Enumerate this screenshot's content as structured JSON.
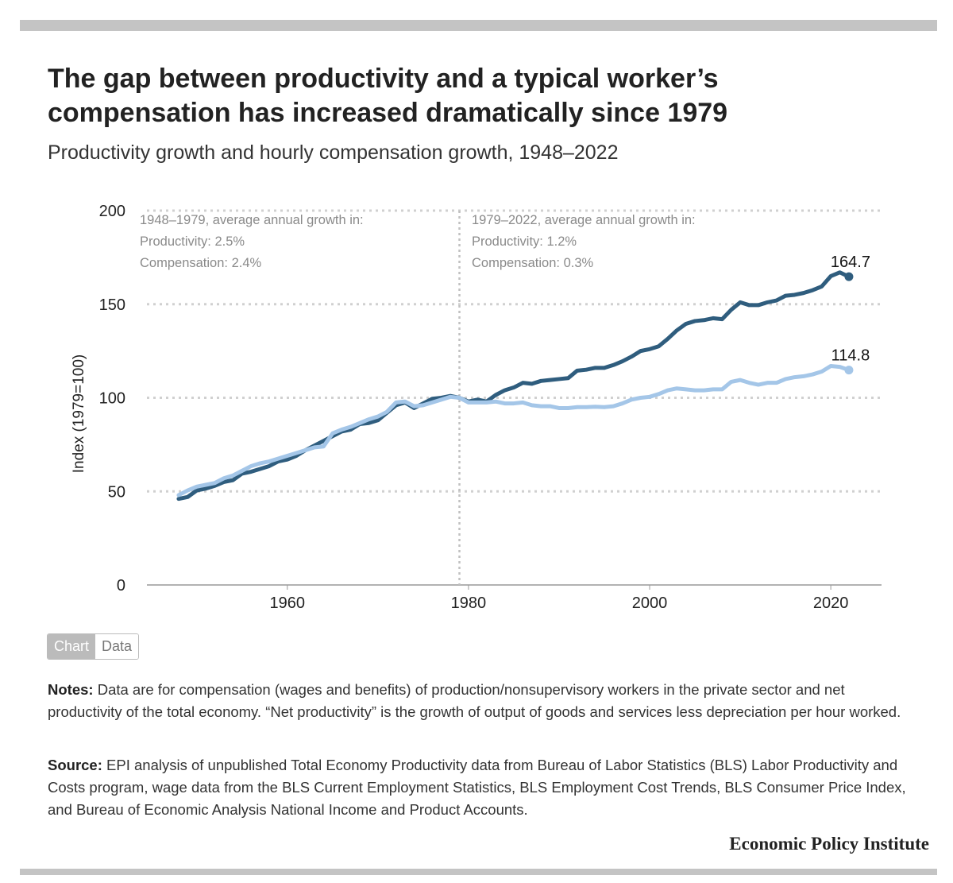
{
  "title": "The gap between productivity and a typical worker’s compensation has increased dramatically since 1979",
  "subtitle": "Productivity growth and hourly compensation growth, 1948–2022",
  "toggle": {
    "chart": "Chart",
    "data": "Data",
    "selected": "Chart"
  },
  "notes": {
    "label": "Notes:",
    "text": " Data are for compensation (wages and benefits) of production/nonsupervisory workers in the private sector and net productivity of the total economy. “Net productivity” is the growth of output of goods and services less depreciation per hour worked."
  },
  "source": {
    "label": "Source:",
    "text": " EPI analysis of unpublished Total Economy Productivity data from Bureau of Labor Statistics (BLS) Labor Productivity and Costs program, wage data from the BLS Current Employment Statistics, BLS Employment Cost Trends, BLS Consumer Price Index, and Bureau of Economic Analysis National Income and Product Accounts."
  },
  "logo": "Economic Policy Institute",
  "chart_data": {
    "type": "line",
    "title": "",
    "xlabel": "",
    "ylabel": "Index (1979=100)",
    "xlim": [
      1944.5,
      2025.6
    ],
    "ylim": [
      0,
      200
    ],
    "xticks": [
      1960,
      1980,
      2000,
      2020
    ],
    "yticks": [
      0,
      50,
      100,
      150,
      200
    ],
    "grid": "horizontal dotted",
    "divider_year": 1979,
    "annotations": [
      {
        "lines": [
          "1948–1979, average annual growth in:",
          "Productivity: 2.5%",
          "Compensation: 2.4%"
        ]
      },
      {
        "lines": [
          "1979–2022, average annual growth in:",
          "Productivity: 1.2%",
          "Compensation: 0.3%"
        ]
      }
    ],
    "x_start": 1948,
    "series": [
      {
        "key": "productivity",
        "color": "#2f5d7e",
        "end_label": "164.7",
        "values": [
          46,
          47,
          50.5,
          51.5,
          53,
          55,
          56,
          59.5,
          60.5,
          62,
          63.5,
          66,
          67,
          69,
          72,
          74.5,
          77,
          79.5,
          82,
          83,
          86,
          86.5,
          88,
          92,
          96,
          97.5,
          94.5,
          97,
          99.5,
          100,
          101,
          100,
          98,
          99,
          98,
          101.5,
          104,
          105.5,
          108,
          107.5,
          109,
          109.5,
          110,
          110.5,
          114.5,
          115,
          116,
          116,
          117.5,
          119.5,
          122,
          125,
          126,
          127.5,
          131.5,
          136,
          139.5,
          141,
          141.5,
          142.5,
          142,
          147,
          151,
          149.5,
          149.5,
          151,
          152,
          154.5,
          155,
          156,
          157.5,
          159.5,
          165,
          167,
          164.7
        ]
      },
      {
        "key": "compensation",
        "color": "#a4c6e8",
        "end_label": "114.8",
        "values": [
          48,
          50.5,
          52.5,
          53.5,
          54.5,
          57,
          58.5,
          61,
          63.5,
          65,
          66,
          67.5,
          69,
          70.5,
          72,
          73.5,
          74,
          81,
          83,
          84.5,
          86.5,
          88.5,
          90,
          92.5,
          97.5,
          98,
          95.5,
          96,
          97.5,
          99,
          100.5,
          100,
          97.5,
          97.5,
          97.5,
          98,
          97,
          97,
          97.5,
          96,
          95.5,
          95.5,
          94.5,
          94.5,
          95,
          95,
          95.2,
          95,
          95.5,
          97,
          99,
          100,
          100.5,
          102,
          104,
          105,
          104.5,
          104,
          104,
          104.5,
          104.5,
          108.5,
          109.5,
          108,
          107,
          108,
          108,
          110,
          111,
          111.5,
          112.5,
          114,
          117,
          116.5,
          114.8
        ]
      }
    ]
  }
}
